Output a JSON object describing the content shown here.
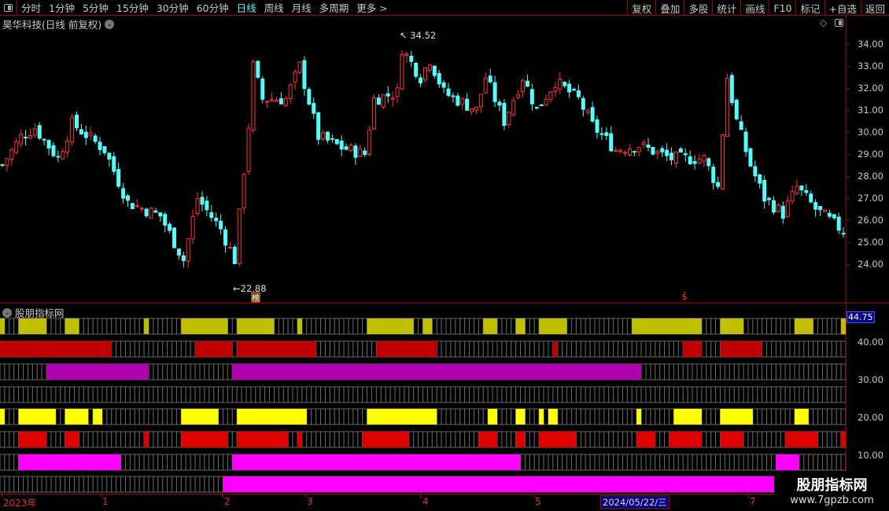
{
  "toolbar": {
    "periods": [
      "分时",
      "1分钟",
      "5分钟",
      "15分钟",
      "30分钟",
      "60分钟",
      "日线",
      "周线",
      "月线",
      "多周期",
      "更多 >"
    ],
    "active_period": "日线",
    "actions": [
      "复权",
      "叠加",
      "多股",
      "统计",
      "画线",
      "F10",
      "标记",
      "+自选",
      "返回"
    ]
  },
  "stock": {
    "title": "昊华科技(日线 前复权)"
  },
  "price_axis": {
    "labels": [
      "34.00",
      "33.00",
      "32.00",
      "31.00",
      "30.00",
      "29.00",
      "28.00",
      "27.00",
      "26.00",
      "25.00",
      "24.00"
    ],
    "max": 34,
    "min": 24
  },
  "markers": {
    "high": "34.52",
    "low": "22.88",
    "badge": "榜",
    "signal": "ŝ"
  },
  "colors": {
    "up": "#ff3232",
    "down": "#54fcfc",
    "row1": "#c0c000",
    "row2": "#c00000",
    "row3": "#b000b0",
    "row5": "#ffff00",
    "row6": "#e00000",
    "row7": "#ff00ff",
    "row8": "#ff00ff"
  },
  "candles": {
    "count": 182,
    "trend": [
      [
        0,
        28.5
      ],
      [
        4,
        29.8
      ],
      [
        7,
        30.2
      ],
      [
        12,
        28.8
      ],
      [
        15,
        30.4
      ],
      [
        22,
        29.2
      ],
      [
        27,
        26.8
      ],
      [
        34,
        26.2
      ],
      [
        39,
        24.2
      ],
      [
        42,
        27
      ],
      [
        47,
        25.6
      ],
      [
        50,
        24.2
      ],
      [
        53,
        30.3
      ],
      [
        54,
        33
      ],
      [
        56,
        31.5
      ],
      [
        61,
        31.5
      ],
      [
        64,
        33
      ],
      [
        68,
        29.8
      ],
      [
        73,
        29.3
      ],
      [
        78,
        29
      ],
      [
        80,
        31.5
      ],
      [
        85,
        31.8
      ],
      [
        86,
        33.8
      ],
      [
        90,
        32.5
      ],
      [
        92,
        33.3
      ],
      [
        95,
        31.8
      ],
      [
        102,
        31
      ],
      [
        104,
        32.5
      ],
      [
        108,
        30.5
      ],
      [
        112,
        32.5
      ],
      [
        115,
        31
      ],
      [
        119,
        32.3
      ],
      [
        124,
        31.5
      ],
      [
        127,
        30.3
      ],
      [
        132,
        29.2
      ],
      [
        137,
        29.4
      ],
      [
        144,
        28.8
      ],
      [
        151,
        28.8
      ],
      [
        154,
        27.5
      ],
      [
        156,
        32.5
      ],
      [
        158,
        30.5
      ],
      [
        161,
        28.5
      ],
      [
        164,
        27
      ],
      [
        168,
        26.3
      ],
      [
        171,
        27.5
      ],
      [
        175,
        26.5
      ],
      [
        178,
        26
      ],
      [
        181,
        25.5
      ]
    ]
  },
  "indicator": {
    "title": "股朋指标网",
    "axis": [
      "40.00",
      "30.00",
      "20.00",
      "10.00"
    ],
    "current": "44.75",
    "rows": [
      {
        "color": "row1",
        "segments": [
          [
            0,
            1
          ],
          [
            4,
            10
          ],
          [
            14,
            17
          ],
          [
            31,
            32
          ],
          [
            39,
            49
          ],
          [
            51,
            59
          ],
          [
            64,
            65
          ],
          [
            79,
            89
          ],
          [
            91,
            93
          ],
          [
            104,
            107
          ],
          [
            111,
            113
          ],
          [
            116,
            122
          ],
          [
            136,
            151
          ],
          [
            155,
            160
          ],
          [
            171,
            175
          ],
          [
            181,
            182
          ]
        ]
      },
      {
        "color": "row2",
        "segments": [
          [
            0,
            24
          ],
          [
            42,
            50
          ],
          [
            51,
            68
          ],
          [
            81,
            94
          ],
          [
            119,
            120
          ],
          [
            147,
            151
          ],
          [
            155,
            164
          ]
        ]
      },
      {
        "color": "row3",
        "segments": [
          [
            10,
            32
          ],
          [
            50,
            138
          ]
        ]
      },
      {
        "color": "row3",
        "segments": []
      },
      {
        "color": "row5",
        "segments": [
          [
            0,
            1
          ],
          [
            4,
            12
          ],
          [
            14,
            19
          ],
          [
            20,
            22
          ],
          [
            39,
            47
          ],
          [
            51,
            66
          ],
          [
            79,
            94
          ],
          [
            105,
            107
          ],
          [
            111,
            113
          ],
          [
            116,
            117
          ],
          [
            118,
            120
          ],
          [
            137,
            138
          ],
          [
            145,
            151
          ],
          [
            155,
            162
          ],
          [
            171,
            174
          ]
        ]
      },
      {
        "color": "row6",
        "segments": [
          [
            4,
            10
          ],
          [
            14,
            17
          ],
          [
            31,
            32
          ],
          [
            39,
            49
          ],
          [
            51,
            62
          ],
          [
            64,
            65
          ],
          [
            78,
            88
          ],
          [
            103,
            107
          ],
          [
            111,
            113
          ],
          [
            116,
            124
          ],
          [
            137,
            141
          ],
          [
            144,
            151
          ],
          [
            155,
            160
          ],
          [
            169,
            176
          ],
          [
            181,
            182
          ]
        ]
      },
      {
        "color": "row7",
        "segments": [
          [
            4,
            26
          ],
          [
            50,
            112
          ],
          [
            167,
            172
          ]
        ]
      },
      {
        "color": "row8",
        "segments": [
          [
            48,
            167
          ]
        ]
      }
    ]
  },
  "time_axis": {
    "labels": [
      "2023年",
      "1",
      "2",
      "3",
      "4",
      "5",
      "7"
    ],
    "cursor_date": "2024/05/22/三"
  },
  "watermark": {
    "name": "股朋指标网",
    "url": "www.7gpzb.com"
  }
}
